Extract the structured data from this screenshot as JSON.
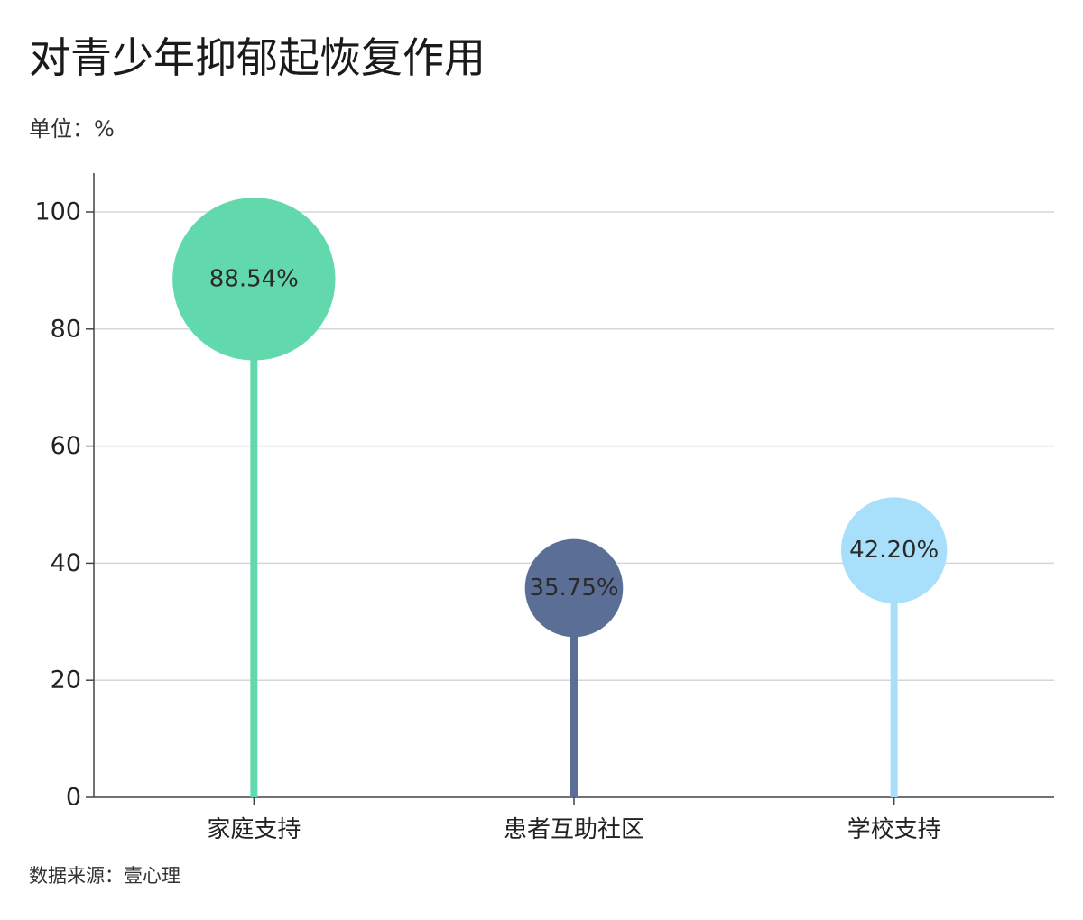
{
  "title": "对青少年抑郁起恢复作用",
  "unit": "单位：%",
  "source": "数据来源：壹心理",
  "chart_data": {
    "type": "lollipop",
    "categories": [
      "家庭支持",
      "患者互助社区",
      "学校支持"
    ],
    "values": [
      88.54,
      35.75,
      42.2
    ],
    "data_labels": [
      "88.54%",
      "35.75%",
      "42.20%"
    ],
    "colors": [
      "#62d9ad",
      "#5b6e96",
      "#a8dffa"
    ],
    "ylim": [
      0,
      105
    ],
    "yticks": [
      0,
      20,
      40,
      60,
      80,
      100
    ],
    "grid": true
  }
}
